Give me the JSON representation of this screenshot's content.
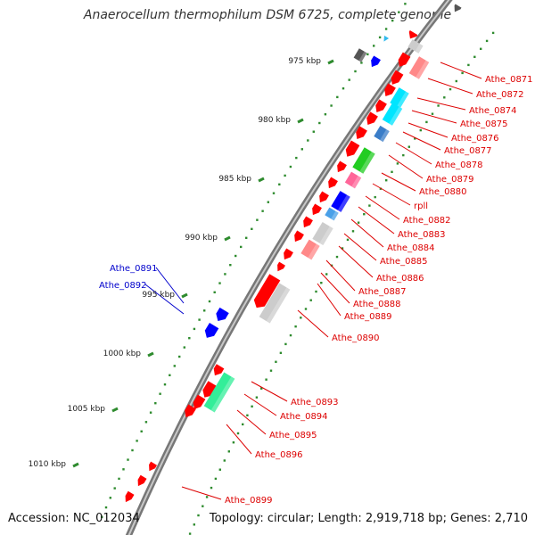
{
  "title": "Anaerocellum thermophilum DSM 6725, complete genome",
  "footer": {
    "accession": "Accession: NC_012034",
    "summary": "Topology: circular; Length: 2,919,718 bp; Genes: 2,710"
  },
  "colors": {
    "backbone": "#8a8a8a",
    "tick": "#2e8b2e",
    "gene_red": "#ff0000",
    "gene_blue": "#0000ff",
    "gene_cyan": "#00e5ff",
    "gene_green": "#22cc22",
    "gene_pink": "#ff6699",
    "gene_gray": "#cccccc",
    "gene_dark": "#555555",
    "label_red": "#dd0000",
    "label_blue": "#0000cc"
  },
  "kbp_labels": [
    "975 kbp",
    "980 kbp",
    "985 kbp",
    "990 kbp",
    "995 kbp",
    "1000 kbp",
    "1005 kbp",
    "1010 kbp"
  ],
  "gene_labels_right": [
    "Athe_0871",
    "Athe_0872",
    "Athe_0874",
    "Athe_0875",
    "Athe_0876",
    "Athe_0877",
    "Athe_0878",
    "Athe_0879",
    "Athe_0880",
    "rpll",
    "Athe_0882",
    "Athe_0883",
    "Athe_0884",
    "Athe_0885",
    "Athe_0886",
    "Athe_0887",
    "Athe_0888",
    "Athe_0889",
    "Athe_0890",
    "Athe_0893",
    "Athe_0894",
    "Athe_0895",
    "Athe_0896",
    "Athe_0899"
  ],
  "gene_labels_left": [
    "Athe_0891",
    "Athe_0892"
  ]
}
